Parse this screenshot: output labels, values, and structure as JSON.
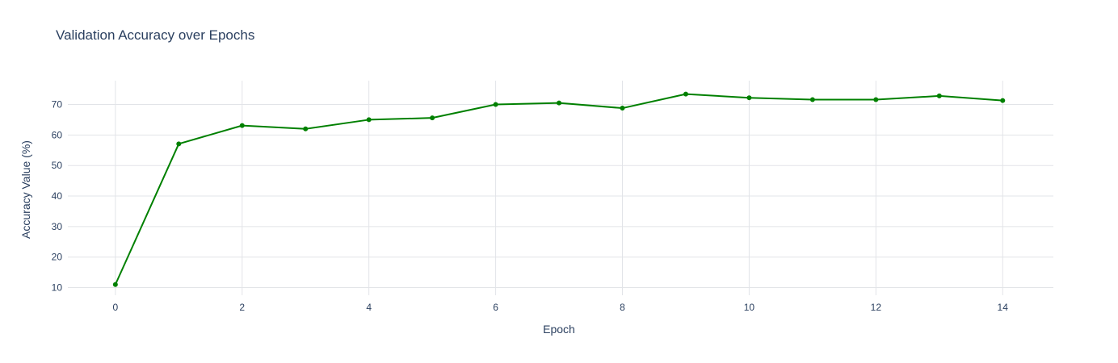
{
  "chart_data": {
    "type": "line",
    "title": "Validation Accuracy over Epochs",
    "xlabel": "Epoch",
    "ylabel": "Accuracy Value (%)",
    "x": [
      0,
      1,
      2,
      3,
      4,
      5,
      6,
      7,
      8,
      9,
      10,
      11,
      12,
      13,
      14
    ],
    "series": [
      {
        "values": [
          11.0,
          57.1,
          63.1,
          62.0,
          65.0,
          65.6,
          70.0,
          70.5,
          68.8,
          73.4,
          72.2,
          71.6,
          71.6,
          72.8,
          71.3
        ],
        "color": "#008000"
      }
    ],
    "xlim": [
      -0.75,
      14.8
    ],
    "ylim": [
      7.5,
      77.8
    ],
    "xticks": [
      0,
      2,
      4,
      6,
      8,
      10,
      12,
      14
    ],
    "yticks": [
      10,
      20,
      30,
      40,
      50,
      60,
      70
    ],
    "grid": true,
    "legend": false
  }
}
